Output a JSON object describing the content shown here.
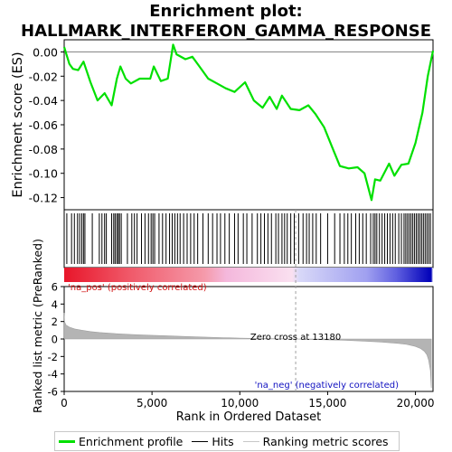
{
  "title_line1": "Enrichment plot:",
  "title_line2": "HALLMARK_INTERFERON_GAMMA_RESPONSE",
  "colors": {
    "es_line": "#00e000",
    "hits": "#000000",
    "metric_fill": "#b4b4b4",
    "pos_label": "#d01010",
    "neg_label": "#1010c0"
  },
  "legend": {
    "items": [
      {
        "label": "Enrichment profile",
        "color": "#00e000"
      },
      {
        "label": "Hits",
        "color": "#000000"
      },
      {
        "label": "Ranking metric scores",
        "color": "#c8c8c8"
      }
    ]
  },
  "chart_data": [
    {
      "type": "line",
      "name": "enrichment-profile",
      "ylabel": "Enrichment score (ES)",
      "xlim": [
        0,
        21000
      ],
      "ylim": [
        -0.13,
        0.01
      ],
      "yticks": [
        0.0,
        -0.02,
        -0.04,
        -0.06,
        -0.08,
        -0.1,
        -0.12
      ],
      "ytick_labels": [
        "0.00",
        "-0.02",
        "-0.04",
        "-0.06",
        "-0.08",
        "-0.10",
        "-0.12"
      ],
      "zero_line": true,
      "x": [
        0,
        300,
        500,
        800,
        1100,
        1500,
        1900,
        2300,
        2700,
        3000,
        3200,
        3500,
        3800,
        4300,
        4900,
        5100,
        5500,
        5900,
        6200,
        6400,
        6900,
        7300,
        7700,
        8200,
        8700,
        9200,
        9700,
        10300,
        10800,
        11300,
        11700,
        12100,
        12400,
        12900,
        13400,
        13900,
        14300,
        14800,
        15300,
        15700,
        16200,
        16700,
        17100,
        17500,
        17700,
        18000,
        18500,
        18800,
        19200,
        19600,
        20000,
        20400,
        20700,
        21000
      ],
      "y": [
        0.004,
        -0.01,
        -0.014,
        -0.015,
        -0.008,
        -0.025,
        -0.04,
        -0.034,
        -0.044,
        -0.022,
        -0.012,
        -0.022,
        -0.026,
        -0.022,
        -0.022,
        -0.012,
        -0.024,
        -0.022,
        0.006,
        -0.002,
        -0.006,
        -0.004,
        -0.012,
        -0.022,
        -0.026,
        -0.03,
        -0.033,
        -0.025,
        -0.04,
        -0.046,
        -0.037,
        -0.047,
        -0.036,
        -0.047,
        -0.048,
        -0.044,
        -0.051,
        -0.062,
        -0.08,
        -0.094,
        -0.096,
        -0.095,
        -0.1,
        -0.122,
        -0.105,
        -0.106,
        -0.092,
        -0.102,
        -0.093,
        -0.092,
        -0.075,
        -0.05,
        -0.02,
        0.001
      ]
    },
    {
      "type": "scatter",
      "name": "hits",
      "xlim": [
        0,
        21000
      ],
      "x": [
        150,
        420,
        580,
        760,
        880,
        1000,
        1100,
        1180,
        1600,
        2000,
        2150,
        2300,
        2400,
        2700,
        2820,
        2900,
        3000,
        3080,
        3150,
        3250,
        3600,
        3850,
        4000,
        4150,
        4400,
        4600,
        4800,
        4950,
        5050,
        5150,
        5400,
        5600,
        5800,
        6000,
        6150,
        6300,
        6450,
        6600,
        6800,
        7000,
        7200,
        7400,
        7600,
        7900,
        8200,
        8450,
        8700,
        8900,
        9150,
        9400,
        9700,
        9900,
        10200,
        10400,
        10700,
        11000,
        11200,
        11400,
        11600,
        11800,
        12050,
        12200,
        12400,
        12550,
        12700,
        12900,
        13100,
        13350,
        13600,
        13800,
        13950,
        14150,
        14350,
        14600,
        15000,
        15400,
        15700,
        15950,
        16150,
        16350,
        16600,
        16800,
        17000,
        17200,
        17450,
        17600,
        17700,
        17800,
        17950,
        18100,
        18250,
        18400,
        18550,
        18700,
        18850,
        19050,
        19200,
        19350,
        19450,
        19550,
        19650,
        19750,
        19850,
        19950,
        20050,
        20150,
        20250,
        20350,
        20450,
        20550,
        20650,
        20750,
        20850
      ]
    },
    {
      "type": "area",
      "name": "ranking-metric-scores",
      "xlabel": "Rank in Ordered Dataset",
      "ylabel": "Ranked list metric (PreRanked)",
      "xlim": [
        0,
        21000
      ],
      "ylim": [
        -6,
        6
      ],
      "xticks": [
        0,
        5000,
        10000,
        15000,
        20000
      ],
      "xtick_labels": [
        "0",
        "5,000",
        "10,000",
        "15,000",
        "20,000"
      ],
      "yticks": [
        6,
        4,
        2,
        0,
        -2,
        -4,
        -6
      ],
      "ytick_labels": [
        "6",
        "4",
        "2",
        "0",
        "-2",
        "-4",
        "-6"
      ],
      "x": [
        0,
        20,
        100,
        300,
        600,
        1000,
        1500,
        2000,
        3000,
        4000,
        5000,
        6000,
        7000,
        8000,
        9000,
        10000,
        11000,
        12000,
        13180,
        14000,
        15000,
        16000,
        17000,
        18000,
        19000,
        19500,
        20000,
        20300,
        20500,
        20650,
        20750,
        20850,
        20900
      ],
      "y": [
        3.0,
        2.0,
        1.6,
        1.35,
        1.15,
        1.0,
        0.85,
        0.75,
        0.6,
        0.5,
        0.42,
        0.35,
        0.28,
        0.22,
        0.16,
        0.1,
        0.06,
        0.03,
        0.0,
        -0.04,
        -0.1,
        -0.16,
        -0.24,
        -0.34,
        -0.5,
        -0.62,
        -0.85,
        -1.1,
        -1.4,
        -1.8,
        -2.4,
        -3.6,
        -5.6
      ],
      "zero_cross_x": 13180,
      "annotations": {
        "zero_cross": "Zero cross at 13180",
        "pos": "'na_pos' (positively correlated)",
        "neg": "'na_neg' (negatively correlated)"
      }
    }
  ]
}
